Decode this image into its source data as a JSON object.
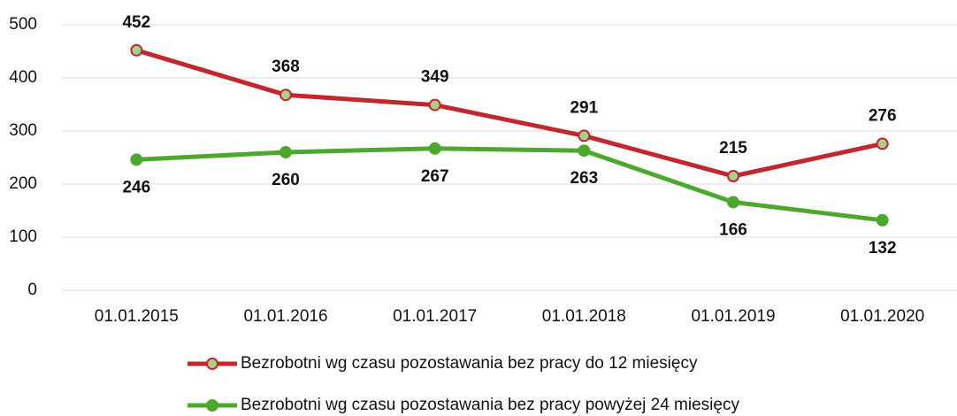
{
  "chart_data": {
    "type": "line",
    "categories": [
      "01.01.2015",
      "01.01.2016",
      "01.01.2017",
      "01.01.2018",
      "01.01.2019",
      "01.01.2020"
    ],
    "series": [
      {
        "name": "Bezrobotni wg czasu pozostawania bez pracy do 12 miesięcy",
        "color": "#c0282d",
        "marker_color": "#a8d08d",
        "values": [
          452,
          368,
          349,
          291,
          215,
          276
        ]
      },
      {
        "name": "Bezrobotni wg czasu pozostawania bez pracy powyżej 24 miesięcy",
        "color": "#4ea72e",
        "marker_color": "#4ea72e",
        "values": [
          246,
          260,
          267,
          263,
          166,
          132
        ]
      }
    ],
    "ylim": [
      0,
      500
    ],
    "yticks": [
      0,
      100,
      200,
      300,
      400,
      500
    ],
    "grid": true,
    "legend": "bottom"
  }
}
